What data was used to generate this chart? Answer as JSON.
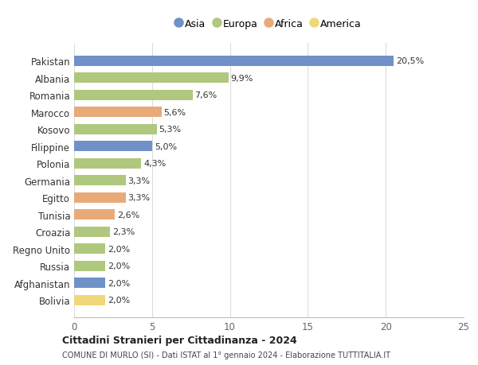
{
  "countries": [
    "Pakistan",
    "Albania",
    "Romania",
    "Marocco",
    "Kosovo",
    "Filippine",
    "Polonia",
    "Germania",
    "Egitto",
    "Tunisia",
    "Croazia",
    "Regno Unito",
    "Russia",
    "Afghanistan",
    "Bolivia"
  ],
  "values": [
    20.5,
    9.9,
    7.6,
    5.6,
    5.3,
    5.0,
    4.3,
    3.3,
    3.3,
    2.6,
    2.3,
    2.0,
    2.0,
    2.0,
    2.0
  ],
  "labels": [
    "20,5%",
    "9,9%",
    "7,6%",
    "5,6%",
    "5,3%",
    "5,0%",
    "4,3%",
    "3,3%",
    "3,3%",
    "2,6%",
    "2,3%",
    "2,0%",
    "2,0%",
    "2,0%",
    "2,0%"
  ],
  "continents": [
    "Asia",
    "Europa",
    "Europa",
    "Africa",
    "Europa",
    "Asia",
    "Europa",
    "Europa",
    "Africa",
    "Africa",
    "Europa",
    "Europa",
    "Europa",
    "Asia",
    "America"
  ],
  "colors": {
    "Asia": "#7090c8",
    "Europa": "#afc87e",
    "Africa": "#e8aa78",
    "America": "#f0d87a"
  },
  "legend_order": [
    "Asia",
    "Europa",
    "Africa",
    "America"
  ],
  "title1": "Cittadini Stranieri per Cittadinanza - 2024",
  "title2": "COMUNE DI MURLO (SI) - Dati ISTAT al 1° gennaio 2024 - Elaborazione TUTTITALIA.IT",
  "xlim": [
    0,
    25
  ],
  "xticks": [
    0,
    5,
    10,
    15,
    20,
    25
  ],
  "background_color": "#ffffff",
  "bar_height": 0.6,
  "label_fontsize": 8,
  "ytick_fontsize": 8.5,
  "xtick_fontsize": 8.5
}
